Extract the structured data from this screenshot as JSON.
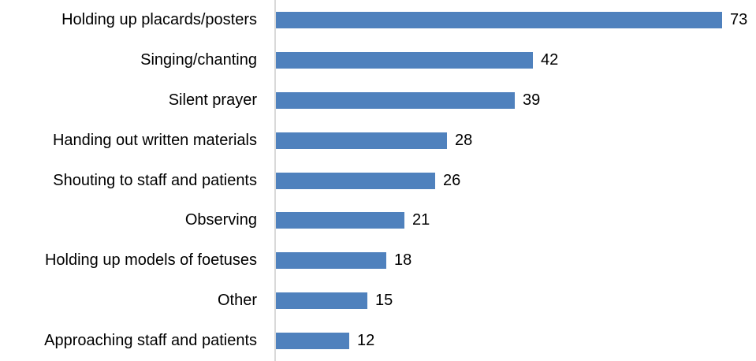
{
  "chart_data": {
    "type": "bar",
    "orientation": "horizontal",
    "title": "",
    "xlabel": "",
    "ylabel": "",
    "categories": [
      "Holding up placards/posters",
      "Singing/chanting",
      "Silent prayer",
      "Handing out written materials",
      "Shouting to staff and patients",
      "Observing",
      "Holding up models of foetuses",
      "Other",
      "Approaching staff and patients"
    ],
    "values": [
      73,
      42,
      39,
      28,
      26,
      21,
      18,
      15,
      12
    ],
    "xlim": [
      0,
      80
    ],
    "grid": false,
    "legend": false,
    "data_labels": true,
    "bar_color": "#4f81bd",
    "axis_line_color": "#d9d9d9",
    "label_color": "#000000",
    "background_color": "#ffffff"
  }
}
